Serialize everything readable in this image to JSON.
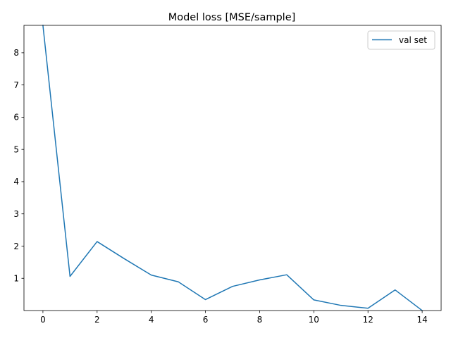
{
  "chart_data": {
    "type": "line",
    "title": "Model loss [MSE/sample]",
    "xlabel": "",
    "ylabel": "",
    "x": [
      0,
      1,
      2,
      3,
      4,
      5,
      6,
      7,
      8,
      9,
      10,
      11,
      12,
      13,
      14
    ],
    "series": [
      {
        "name": "val set",
        "color": "#1f77b4",
        "values": [
          8.85,
          1.06,
          2.14,
          1.61,
          1.1,
          0.89,
          0.34,
          0.75,
          0.95,
          1.11,
          0.33,
          0.16,
          0.07,
          0.64,
          0.0
        ]
      }
    ],
    "xlim": [
      -0.7,
      14.7
    ],
    "ylim": [
      0.0,
      8.85
    ],
    "xticks": [
      0,
      2,
      4,
      6,
      8,
      10,
      12,
      14
    ],
    "yticks": [
      1,
      2,
      3,
      4,
      5,
      6,
      7,
      8
    ],
    "grid": false,
    "legend_position": "upper-right"
  }
}
